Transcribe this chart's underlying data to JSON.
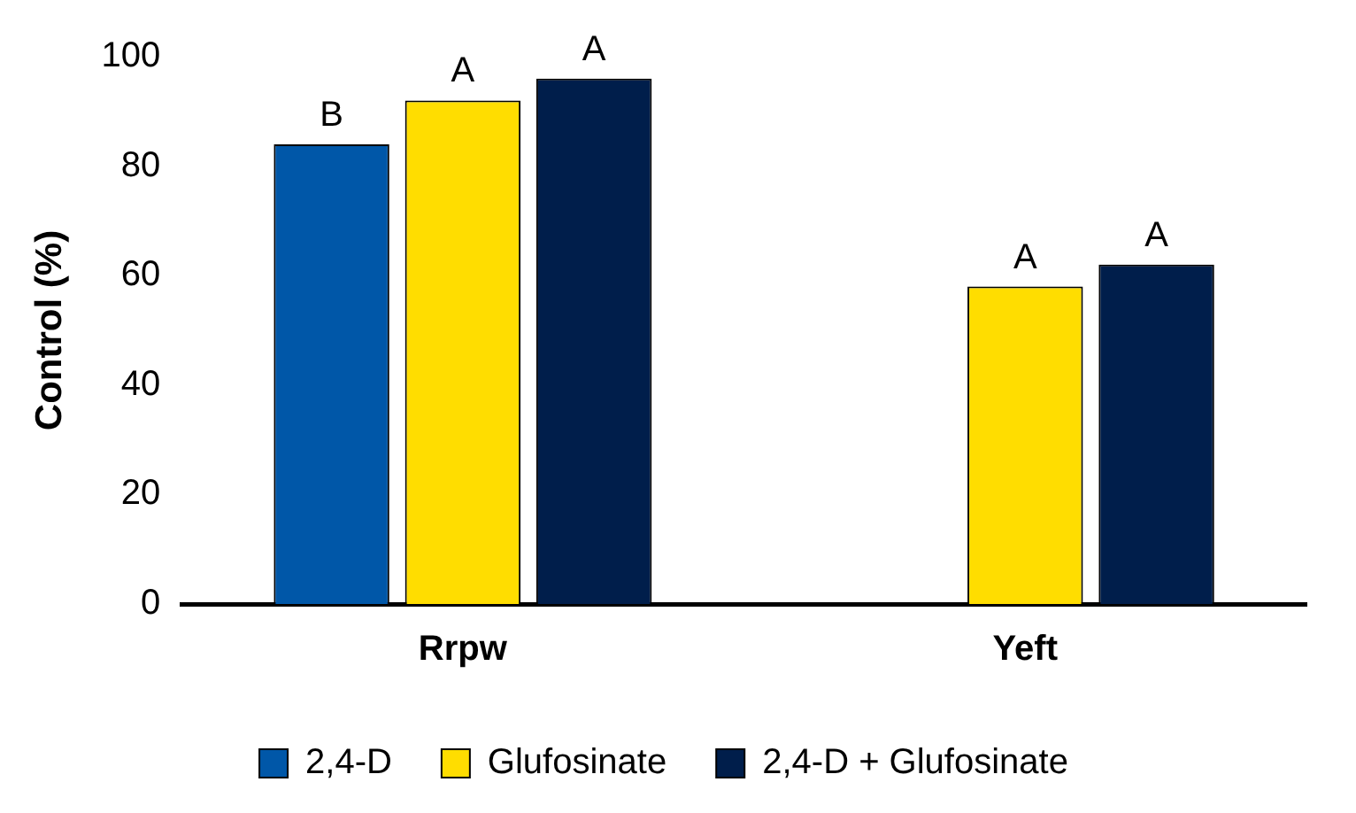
{
  "chart_data": {
    "type": "bar",
    "ylabel": "Control (%)",
    "categories": [
      "Rrpw",
      "Yeft"
    ],
    "series": [
      {
        "name": "2,4-D",
        "color": "#0057a8",
        "values": [
          84,
          null
        ],
        "value_labels": [
          "B",
          null
        ]
      },
      {
        "name": "Glufosinate",
        "color": "#ffdd00",
        "values": [
          92,
          58
        ],
        "value_labels": [
          "A",
          "A"
        ]
      },
      {
        "name": "2,4-D + Glufosinate",
        "color": "#001e4b",
        "values": [
          96,
          62
        ],
        "value_labels": [
          "A",
          "A"
        ]
      }
    ],
    "ylim": [
      0,
      100
    ],
    "yticks": [
      0,
      20,
      40,
      60,
      80,
      100
    ],
    "grid": false,
    "legend": "bottom"
  }
}
